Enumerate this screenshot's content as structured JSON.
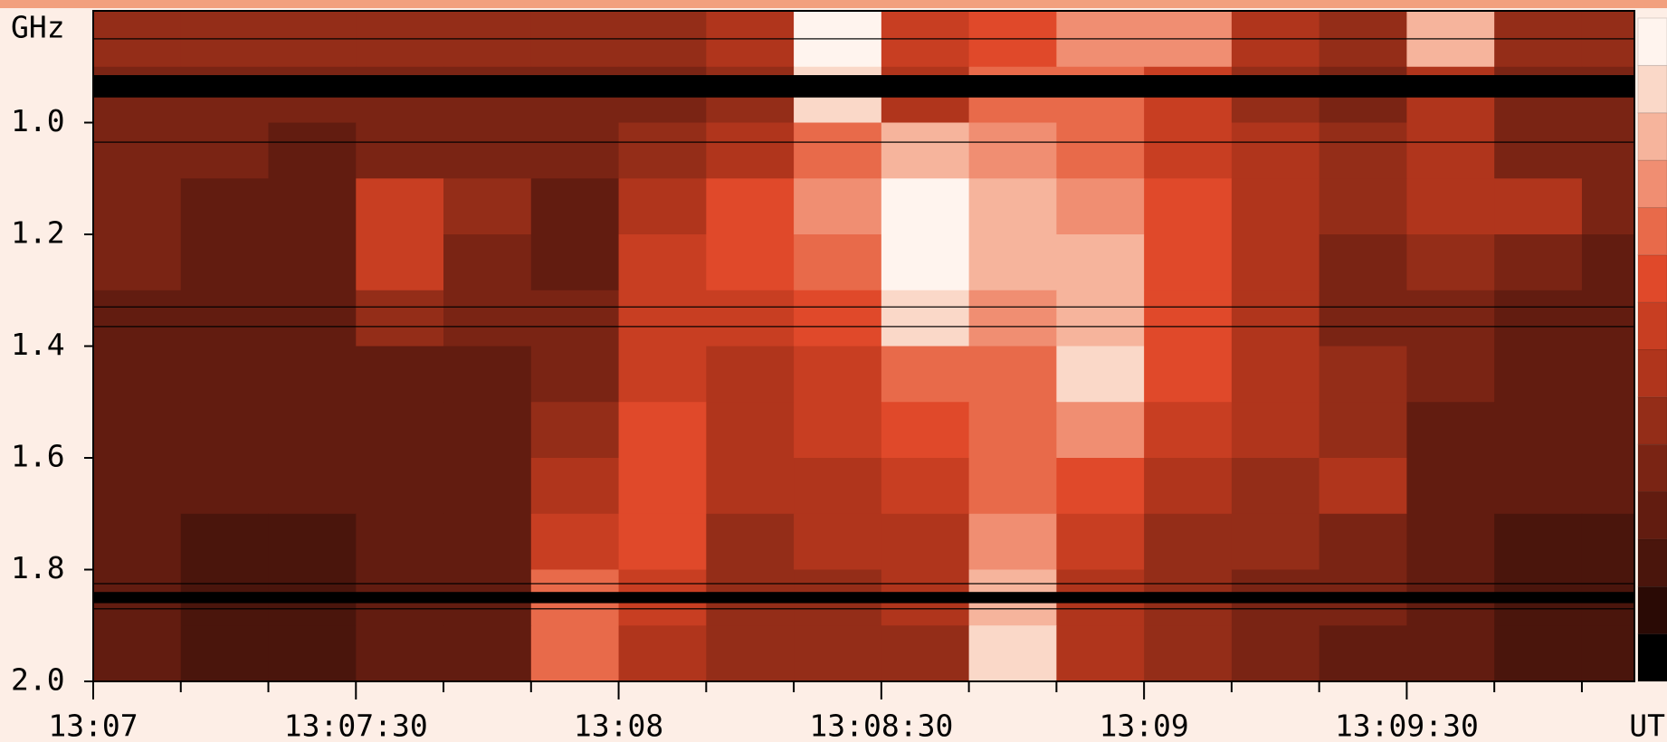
{
  "chart_data": {
    "type": "heatmap",
    "ylabel": "GHz",
    "xlabel": "UT",
    "ylim": [
      0.8,
      2.0
    ],
    "y_inverted": true,
    "yticks": [
      {
        "value": 1,
        "label": "1.0"
      },
      1.2,
      1.4,
      1.6,
      1.8,
      {
        "value": 2,
        "label": "2.0"
      }
    ],
    "xlim": [
      "13:07",
      "13:09:56"
    ],
    "xticks": [
      "13:07",
      "13:07:30",
      "13:08",
      "13:08:30",
      "13:09",
      "13:09:30"
    ],
    "minor_xticks": [
      "13:07:10",
      "13:07:20",
      "13:07:40",
      "13:07:50",
      "13:08:10",
      "13:08:20",
      "13:08:40",
      "13:08:50",
      "13:09:10",
      "13:09:20",
      "13:09:40",
      "13:09:50"
    ],
    "x": [
      "13:07",
      "13:07:10",
      "13:07:20",
      "13:07:30",
      "13:07:40",
      "13:07:50",
      "13:08",
      "13:08:10",
      "13:08:20",
      "13:08:30",
      "13:08:40",
      "13:08:50",
      "13:09",
      "13:09:10",
      "13:09:20",
      "13:09:30",
      "13:09:40",
      "13:09:50"
    ],
    "y": [
      0.8,
      0.9,
      1.0,
      1.1,
      1.2,
      1.3,
      1.4,
      1.5,
      1.6,
      1.7,
      1.8,
      1.9
    ],
    "z": [
      [
        5,
        5,
        5,
        5,
        5,
        5,
        5,
        6,
        13,
        7,
        8,
        10,
        10,
        6,
        5,
        11,
        5,
        5
      ],
      [
        4,
        4,
        4,
        4,
        4,
        4,
        4,
        5,
        12,
        6,
        9,
        9,
        7,
        5,
        4,
        6,
        4,
        4
      ],
      [
        4,
        4,
        3,
        4,
        4,
        4,
        5,
        6,
        9,
        11,
        10,
        9,
        7,
        6,
        5,
        6,
        4,
        4
      ],
      [
        4,
        3,
        3,
        7,
        5,
        3,
        6,
        8,
        10,
        13,
        11,
        10,
        8,
        6,
        5,
        6,
        6,
        4
      ],
      [
        4,
        3,
        3,
        7,
        4,
        3,
        7,
        8,
        9,
        13,
        11,
        11,
        8,
        6,
        4,
        5,
        4,
        3
      ],
      [
        3,
        3,
        3,
        5,
        4,
        4,
        7,
        7,
        8,
        12,
        10,
        11,
        8,
        6,
        4,
        4,
        3,
        3
      ],
      [
        3,
        3,
        3,
        3,
        3,
        4,
        7,
        6,
        7,
        9,
        9,
        12,
        8,
        6,
        5,
        4,
        3,
        3
      ],
      [
        3,
        3,
        3,
        3,
        3,
        5,
        8,
        6,
        7,
        8,
        9,
        10,
        7,
        6,
        5,
        3,
        3,
        3
      ],
      [
        3,
        3,
        3,
        3,
        3,
        6,
        8,
        6,
        6,
        7,
        9,
        8,
        6,
        5,
        6,
        3,
        3,
        3
      ],
      [
        3,
        2,
        2,
        3,
        3,
        7,
        8,
        5,
        6,
        6,
        10,
        7,
        5,
        5,
        4,
        3,
        2,
        2
      ],
      [
        3,
        2,
        2,
        3,
        3,
        9,
        7,
        5,
        5,
        6,
        11,
        6,
        5,
        4,
        4,
        3,
        2,
        2
      ],
      [
        3,
        2,
        2,
        3,
        3,
        9,
        6,
        5,
        5,
        5,
        12,
        6,
        5,
        4,
        3,
        3,
        2,
        2
      ]
    ],
    "colorscale": [
      "#000000",
      "#2a0a05",
      "#4a150c",
      "#621c10",
      "#7a2414",
      "#942d18",
      "#b0351c",
      "#c83e22",
      "#e0492a",
      "#e86a4a",
      "#f08e72",
      "#f6b49c",
      "#fad8c8",
      "#fff4ee"
    ],
    "bands": [
      [
        0.915,
        0.955
      ],
      [
        1.84,
        1.86
      ]
    ],
    "lines": [
      0.85,
      1.035,
      1.33,
      1.365,
      1.825,
      1.87
    ]
  }
}
